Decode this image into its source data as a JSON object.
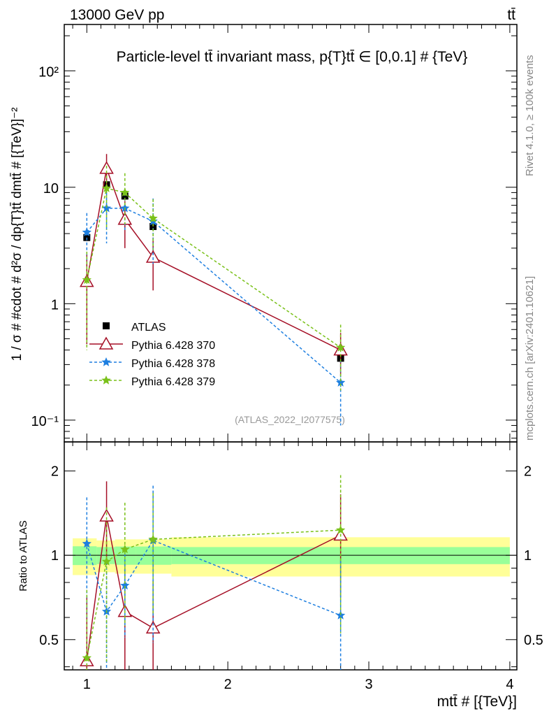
{
  "chart_data": {
    "type": "line",
    "title": "Particle-level tt̄ invariant mass, p{T}tt̄ ∈ [0,0.1] # {TeV}",
    "top_left": "13000 GeV pp",
    "top_right": "tt̄",
    "side_text_1": "Rivet 4.1.0, ≥ 100k events",
    "side_text_2": "mcplots.cern.ch [arXiv:2401.10621]",
    "watermark": "(ATLAS_2022_I2077575)",
    "ylabel": "1 / σ # #cdot # d²σ / dp{T}tt̄ dmtt̄ # [{TeV}]⁻²",
    "ratio_ylabel": "Ratio to ATLAS",
    "xlabel": "mtt̄ # [{TeV}]",
    "xlim": [
      0.84,
      4.05
    ],
    "ylim": [
      0.065,
      250
    ],
    "ratio_ylim": [
      0.39,
      2.54
    ],
    "yscale": "log",
    "x_ticks": [
      "1",
      "2",
      "3",
      "4"
    ],
    "y_ticks": [
      "10⁻¹",
      "1",
      "10",
      "10²"
    ],
    "ratio_ticks": [
      "0.5",
      "1",
      "2"
    ],
    "legend_position": "center-left",
    "x": [
      1.0,
      1.14,
      1.27,
      1.47,
      2.8
    ],
    "series": [
      {
        "name": "ATLAS",
        "color": "#000000",
        "marker": "square",
        "values": [
          3.7,
          10.5,
          8.4,
          4.6,
          0.34
        ],
        "err": [
          0.15,
          0.4,
          0.35,
          0.25,
          0.03
        ]
      },
      {
        "name": "Pythia 6.428 370",
        "color": "#a50f26",
        "marker": "triangle",
        "values": [
          1.55,
          14.5,
          5.3,
          2.5,
          0.4
        ],
        "err": [
          1.1,
          4.8,
          2.3,
          1.2,
          0.16
        ],
        "ratio": [
          0.42,
          1.38,
          0.63,
          0.55,
          1.18
        ]
      },
      {
        "name": "Pythia 6.428 378",
        "color": "#1e7fe0",
        "marker": "star",
        "values": [
          4.1,
          6.6,
          6.6,
          5.1,
          0.21
        ],
        "err": [
          1.9,
          3.3,
          2.3,
          2.9,
          0.12
        ],
        "ratio": [
          1.1,
          0.63,
          0.78,
          1.13,
          0.61
        ]
      },
      {
        "name": "Pythia 6.428 379",
        "color": "#7ac11a",
        "marker": "star",
        "values": [
          1.6,
          9.8,
          9.0,
          5.4,
          0.42
        ],
        "err": [
          1.2,
          5.5,
          4.2,
          2.5,
          0.24
        ],
        "ratio": [
          0.43,
          0.95,
          1.05,
          1.14,
          1.23
        ]
      }
    ],
    "ratio_bands": {
      "bins": [
        [
          0.9,
          1.07
        ],
        [
          1.07,
          1.2
        ],
        [
          1.2,
          1.35
        ],
        [
          1.35,
          1.6
        ],
        [
          1.6,
          4.0
        ]
      ],
      "green": [
        0.077,
        0.07,
        0.075,
        0.075,
        0.07
      ],
      "yellow": [
        0.15,
        0.13,
        0.14,
        0.14,
        0.16
      ]
    }
  }
}
